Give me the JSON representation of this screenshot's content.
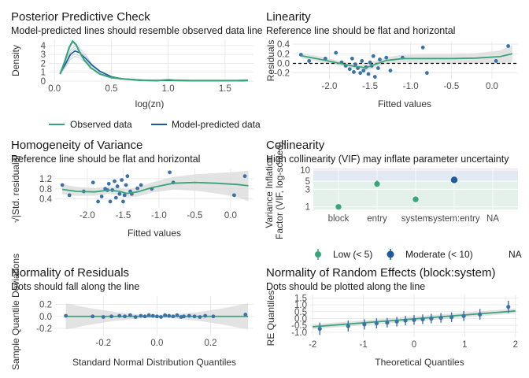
{
  "colors": {
    "green": "#3aa57a",
    "blue": "#1f5a9e",
    "point": "#3b73a8",
    "band": "#d9d9d9",
    "grid": "#e6e6e6",
    "ref": "#000000"
  },
  "chart_data": [
    {
      "id": "ppc",
      "type": "line",
      "title": "Posterior Predictive Check",
      "subtitle": "Model-predicted lines should resemble observed data line",
      "xlabel": "log(zn)",
      "ylabel": "Density",
      "xlim": [
        -0.05,
        1.75
      ],
      "ylim": [
        0,
        4.7
      ],
      "xticks": [
        0.0,
        0.5,
        1.0,
        1.5
      ],
      "xtick_labels": [
        "0.0",
        "0.5",
        "1.0",
        "1.5"
      ],
      "yticks": [
        0,
        1,
        2,
        3,
        4
      ],
      "ytick_labels": [
        "0",
        "1",
        "2",
        "3",
        "4"
      ],
      "legend": {
        "position": "bottom",
        "entries": [
          "Observed data",
          "Model-predicted data"
        ]
      },
      "series": [
        {
          "name": "Observed data",
          "x": [
            0.05,
            0.09,
            0.13,
            0.16,
            0.19,
            0.22,
            0.26,
            0.32,
            0.4,
            0.5,
            0.6,
            0.75,
            0.9,
            1.0,
            1.05,
            1.2,
            1.4,
            1.6,
            1.7
          ],
          "y": [
            0.8,
            2.2,
            3.8,
            4.5,
            4.1,
            3.3,
            2.4,
            1.5,
            0.8,
            0.4,
            0.25,
            0.1,
            0.05,
            0.15,
            0.1,
            0.05,
            0.05,
            0.05,
            0.1
          ]
        },
        {
          "name": "Model-predicted data",
          "x": [
            0.05,
            0.1,
            0.14,
            0.18,
            0.22,
            0.27,
            0.33,
            0.4,
            0.5,
            0.6,
            0.8,
            1.0,
            1.3,
            1.6,
            1.7
          ],
          "y": [
            0.9,
            2.0,
            3.0,
            3.4,
            3.2,
            2.6,
            1.8,
            1.1,
            0.5,
            0.25,
            0.1,
            0.06,
            0.04,
            0.03,
            0.05
          ]
        }
      ]
    },
    {
      "id": "linearity",
      "type": "scatter",
      "title": "Linearity",
      "subtitle": "Reference line should be flat and horizontal",
      "xlabel": "Fitted values",
      "ylabel": "Residuals",
      "xlim": [
        -2.45,
        0.32
      ],
      "ylim": [
        -0.32,
        0.45
      ],
      "xticks": [
        -2.0,
        -1.5,
        -1.0,
        -0.5,
        0.0
      ],
      "xtick_labels": [
        "-2.0",
        "-1.5",
        "-1.0",
        "-0.5",
        "0.0"
      ],
      "yticks": [
        -0.2,
        0.0,
        0.2,
        0.4
      ],
      "ytick_labels": [
        "-0.2",
        "0.0",
        "0.2",
        "0.4"
      ],
      "reference_line": 0,
      "points": {
        "x": [
          -2.35,
          -2.25,
          -2.05,
          -1.92,
          -1.85,
          -1.8,
          -1.75,
          -1.72,
          -1.7,
          -1.68,
          -1.65,
          -1.62,
          -1.6,
          -1.58,
          -1.55,
          -1.52,
          -1.5,
          -1.48,
          -1.46,
          -1.44,
          -1.4,
          -1.38,
          -1.3,
          -1.25,
          -1.1,
          -0.85,
          -0.8,
          0.05,
          0.2
        ],
        "y": [
          0.18,
          0.05,
          0.1,
          0.22,
          0.02,
          -0.05,
          -0.12,
          0.1,
          -0.18,
          -0.02,
          -0.1,
          -0.2,
          0.05,
          -0.15,
          -0.08,
          -0.22,
          0.02,
          -0.05,
          0.15,
          -0.28,
          -0.1,
          0.08,
          0.12,
          -0.15,
          0.12,
          0.33,
          -0.2,
          0.05,
          0.36
        ]
      },
      "smooth": {
        "x": [
          -2.35,
          -2.1,
          -1.9,
          -1.7,
          -1.55,
          -1.45,
          -1.3,
          -1.1,
          -0.8,
          -0.5,
          -0.2,
          0.1,
          0.25
        ],
        "y": [
          0.16,
          0.08,
          0.01,
          -0.06,
          -0.09,
          -0.03,
          0.06,
          0.1,
          0.1,
          0.1,
          0.11,
          0.14,
          0.2
        ],
        "band": [
          0.05,
          0.06,
          0.05,
          0.05,
          0.06,
          0.07,
          0.07,
          0.08,
          0.09,
          0.09,
          0.1,
          0.13,
          0.18
        ]
      }
    },
    {
      "id": "homogeneity",
      "type": "scatter",
      "title": "Homogeneity of Variance",
      "subtitle": "Reference line should be flat and horizontal",
      "xlabel": "Fitted values",
      "ylabel": "√|Std. residuals|",
      "xlim": [
        -2.45,
        0.32
      ],
      "ylim": [
        0.05,
        1.6
      ],
      "xticks": [
        -2.0,
        -1.5,
        -1.0,
        -0.5,
        0.0
      ],
      "xtick_labels": [
        "-2.0",
        "-1.5",
        "-1.0",
        "-0.5",
        "0.0"
      ],
      "yticks": [
        0.4,
        0.8,
        1.2
      ],
      "ytick_labels": [
        "0.4",
        "0.8",
        "1.2"
      ],
      "points": {
        "x": [
          -2.35,
          -2.25,
          -2.05,
          -1.92,
          -1.85,
          -1.8,
          -1.75,
          -1.72,
          -1.7,
          -1.68,
          -1.65,
          -1.62,
          -1.6,
          -1.58,
          -1.55,
          -1.52,
          -1.5,
          -1.48,
          -1.46,
          -1.44,
          -1.4,
          -1.38,
          -1.3,
          -1.25,
          -1.1,
          -0.85,
          -0.8,
          0.05,
          0.2
        ],
        "y": [
          0.95,
          0.55,
          0.7,
          1.05,
          0.3,
          0.5,
          0.8,
          0.75,
          1.0,
          0.3,
          0.75,
          1.1,
          0.45,
          0.9,
          0.6,
          1.15,
          0.3,
          0.55,
          0.95,
          1.3,
          0.7,
          0.6,
          0.82,
          0.95,
          0.8,
          1.45,
          1.05,
          0.55,
          1.3
        ]
      },
      "smooth": {
        "x": [
          -2.35,
          -2.15,
          -1.9,
          -1.7,
          -1.55,
          -1.45,
          -1.3,
          -1.1,
          -0.8,
          -0.5,
          -0.2,
          0.1,
          0.25
        ],
        "y": [
          0.78,
          0.7,
          0.68,
          0.75,
          0.7,
          0.62,
          0.68,
          0.85,
          1.02,
          1.05,
          1.02,
          0.97,
          0.92
        ],
        "band": [
          0.2,
          0.18,
          0.15,
          0.15,
          0.15,
          0.17,
          0.18,
          0.2,
          0.25,
          0.32,
          0.4,
          0.5,
          0.6
        ]
      }
    },
    {
      "id": "collinearity",
      "type": "scatter",
      "title": "Collinearity",
      "subtitle": "High collinearity (VIF) may inflate parameter uncertainty",
      "xlabel": "",
      "ylabel": "Variance Inflation Factor (VIF, log-scaled)",
      "y_scale": "log",
      "ylim": [
        0.85,
        11
      ],
      "categories": [
        "block",
        "entry",
        "system",
        "system:entry",
        "NA"
      ],
      "yticks": [
        1,
        3,
        5,
        10
      ],
      "ytick_labels": [
        "1",
        "3",
        "5",
        "10"
      ],
      "bands": [
        {
          "from": 0.85,
          "to": 5,
          "color": "#e3f1ea"
        },
        {
          "from": 5,
          "to": 10,
          "color": "#e3e9f3"
        },
        {
          "from": 10,
          "to": 11,
          "color": "#f6e3e3"
        }
      ],
      "points": [
        {
          "category": "block",
          "vif": 1.0,
          "lo": 1.0,
          "hi": 1.0,
          "group": "Low (< 5)"
        },
        {
          "category": "entry",
          "vif": 4.2,
          "lo": 3.5,
          "hi": 5.2,
          "group": "Low (< 5)"
        },
        {
          "category": "system",
          "vif": 1.6,
          "lo": 1.35,
          "hi": 1.9,
          "group": "Low (< 5)"
        },
        {
          "category": "system:entry",
          "vif": 5.4,
          "lo": 4.5,
          "hi": 6.6,
          "group": "Moderate (< 10)"
        }
      ],
      "legend": {
        "position": "bottom",
        "entries": [
          "Low (< 5)",
          "Moderate (< 10)",
          "NA"
        ]
      }
    },
    {
      "id": "normres",
      "type": "scatter",
      "title": "Normality of Residuals",
      "subtitle": "Dots should fall along the line",
      "xlabel": "Standard Normal Distribution Quantiles",
      "ylabel": "Sample Quantile Deviations",
      "xlim": [
        -0.38,
        0.36
      ],
      "ylim": [
        -0.32,
        0.34
      ],
      "xticks": [
        -0.2,
        0.0,
        0.2
      ],
      "xtick_labels": [
        "-0.2",
        "0.0",
        "0.2"
      ],
      "yticks": [
        -0.2,
        0.0,
        0.2
      ],
      "ytick_labels": [
        "-0.2",
        "0.0",
        "0.2"
      ],
      "points": {
        "x": [
          -0.34,
          -0.24,
          -0.2,
          -0.17,
          -0.14,
          -0.12,
          -0.1,
          -0.08,
          -0.06,
          -0.045,
          -0.03,
          -0.015,
          0.0,
          0.015,
          0.03,
          0.045,
          0.06,
          0.075,
          0.09,
          0.1,
          0.12,
          0.14,
          0.16,
          0.18,
          0.21,
          0.33
        ],
        "y": [
          0.01,
          0.0,
          -0.01,
          0.0,
          0.01,
          0.0,
          0.02,
          -0.01,
          0.01,
          0.0,
          0.02,
          0.01,
          0.0,
          -0.01,
          0.02,
          0.01,
          0.0,
          0.02,
          -0.01,
          0.0,
          0.01,
          0.0,
          -0.01,
          0.01,
          0.0,
          0.03
        ]
      },
      "band": {
        "x": [
          -0.34,
          -0.25,
          -0.15,
          -0.05,
          0.05,
          0.15,
          0.25,
          0.34
        ],
        "half": [
          0.22,
          0.14,
          0.07,
          0.03,
          0.03,
          0.07,
          0.14,
          0.22
        ]
      }
    },
    {
      "id": "normre",
      "type": "scatter",
      "title": "Normality of Random Effects (block:system)",
      "subtitle": "Dots should be plotted along the line",
      "xlabel": "Theoretical Quantiles",
      "ylabel": "RE Quantiles",
      "xlim": [
        -2.05,
        2.05
      ],
      "ylim": [
        -1.35,
        1.75
      ],
      "xticks": [
        -2,
        -1,
        0,
        1,
        2
      ],
      "xtick_labels": [
        "-2",
        "-1",
        "0",
        "1",
        "2"
      ],
      "yticks": [
        -1.0,
        -0.5,
        0.0,
        0.5,
        1.0,
        1.5
      ],
      "ytick_labels": [
        "-1.0",
        "-0.5",
        "0.0",
        "0.5",
        "1.0",
        "1.5"
      ],
      "points": [
        {
          "x": -1.86,
          "y": -0.75,
          "lo": -1.2,
          "hi": -0.3
        },
        {
          "x": -1.3,
          "y": -0.55,
          "lo": -0.95,
          "hi": -0.15
        },
        {
          "x": -0.98,
          "y": -0.42,
          "lo": -0.8,
          "hi": -0.05
        },
        {
          "x": -0.74,
          "y": -0.35,
          "lo": -0.72,
          "hi": 0.02
        },
        {
          "x": -0.53,
          "y": -0.3,
          "lo": -0.65,
          "hi": 0.05
        },
        {
          "x": -0.34,
          "y": -0.22,
          "lo": -0.58,
          "hi": 0.12
        },
        {
          "x": -0.17,
          "y": -0.15,
          "lo": -0.5,
          "hi": 0.2
        },
        {
          "x": 0.0,
          "y": -0.1,
          "lo": -0.45,
          "hi": 0.25
        },
        {
          "x": 0.17,
          "y": -0.05,
          "lo": -0.4,
          "hi": 0.3
        },
        {
          "x": 0.34,
          "y": 0.0,
          "lo": -0.35,
          "hi": 0.35
        },
        {
          "x": 0.53,
          "y": 0.05,
          "lo": -0.3,
          "hi": 0.4
        },
        {
          "x": 0.74,
          "y": 0.1,
          "lo": -0.25,
          "hi": 0.45
        },
        {
          "x": 0.98,
          "y": 0.18,
          "lo": -0.18,
          "hi": 0.55
        },
        {
          "x": 1.3,
          "y": 0.3,
          "lo": -0.08,
          "hi": 0.7
        },
        {
          "x": 1.86,
          "y": 0.85,
          "lo": 0.4,
          "hi": 1.3
        }
      ],
      "line": {
        "x0": -2.0,
        "y0": -0.6,
        "x1": 2.0,
        "y1": 0.55,
        "band_half": 0.18
      }
    }
  ]
}
